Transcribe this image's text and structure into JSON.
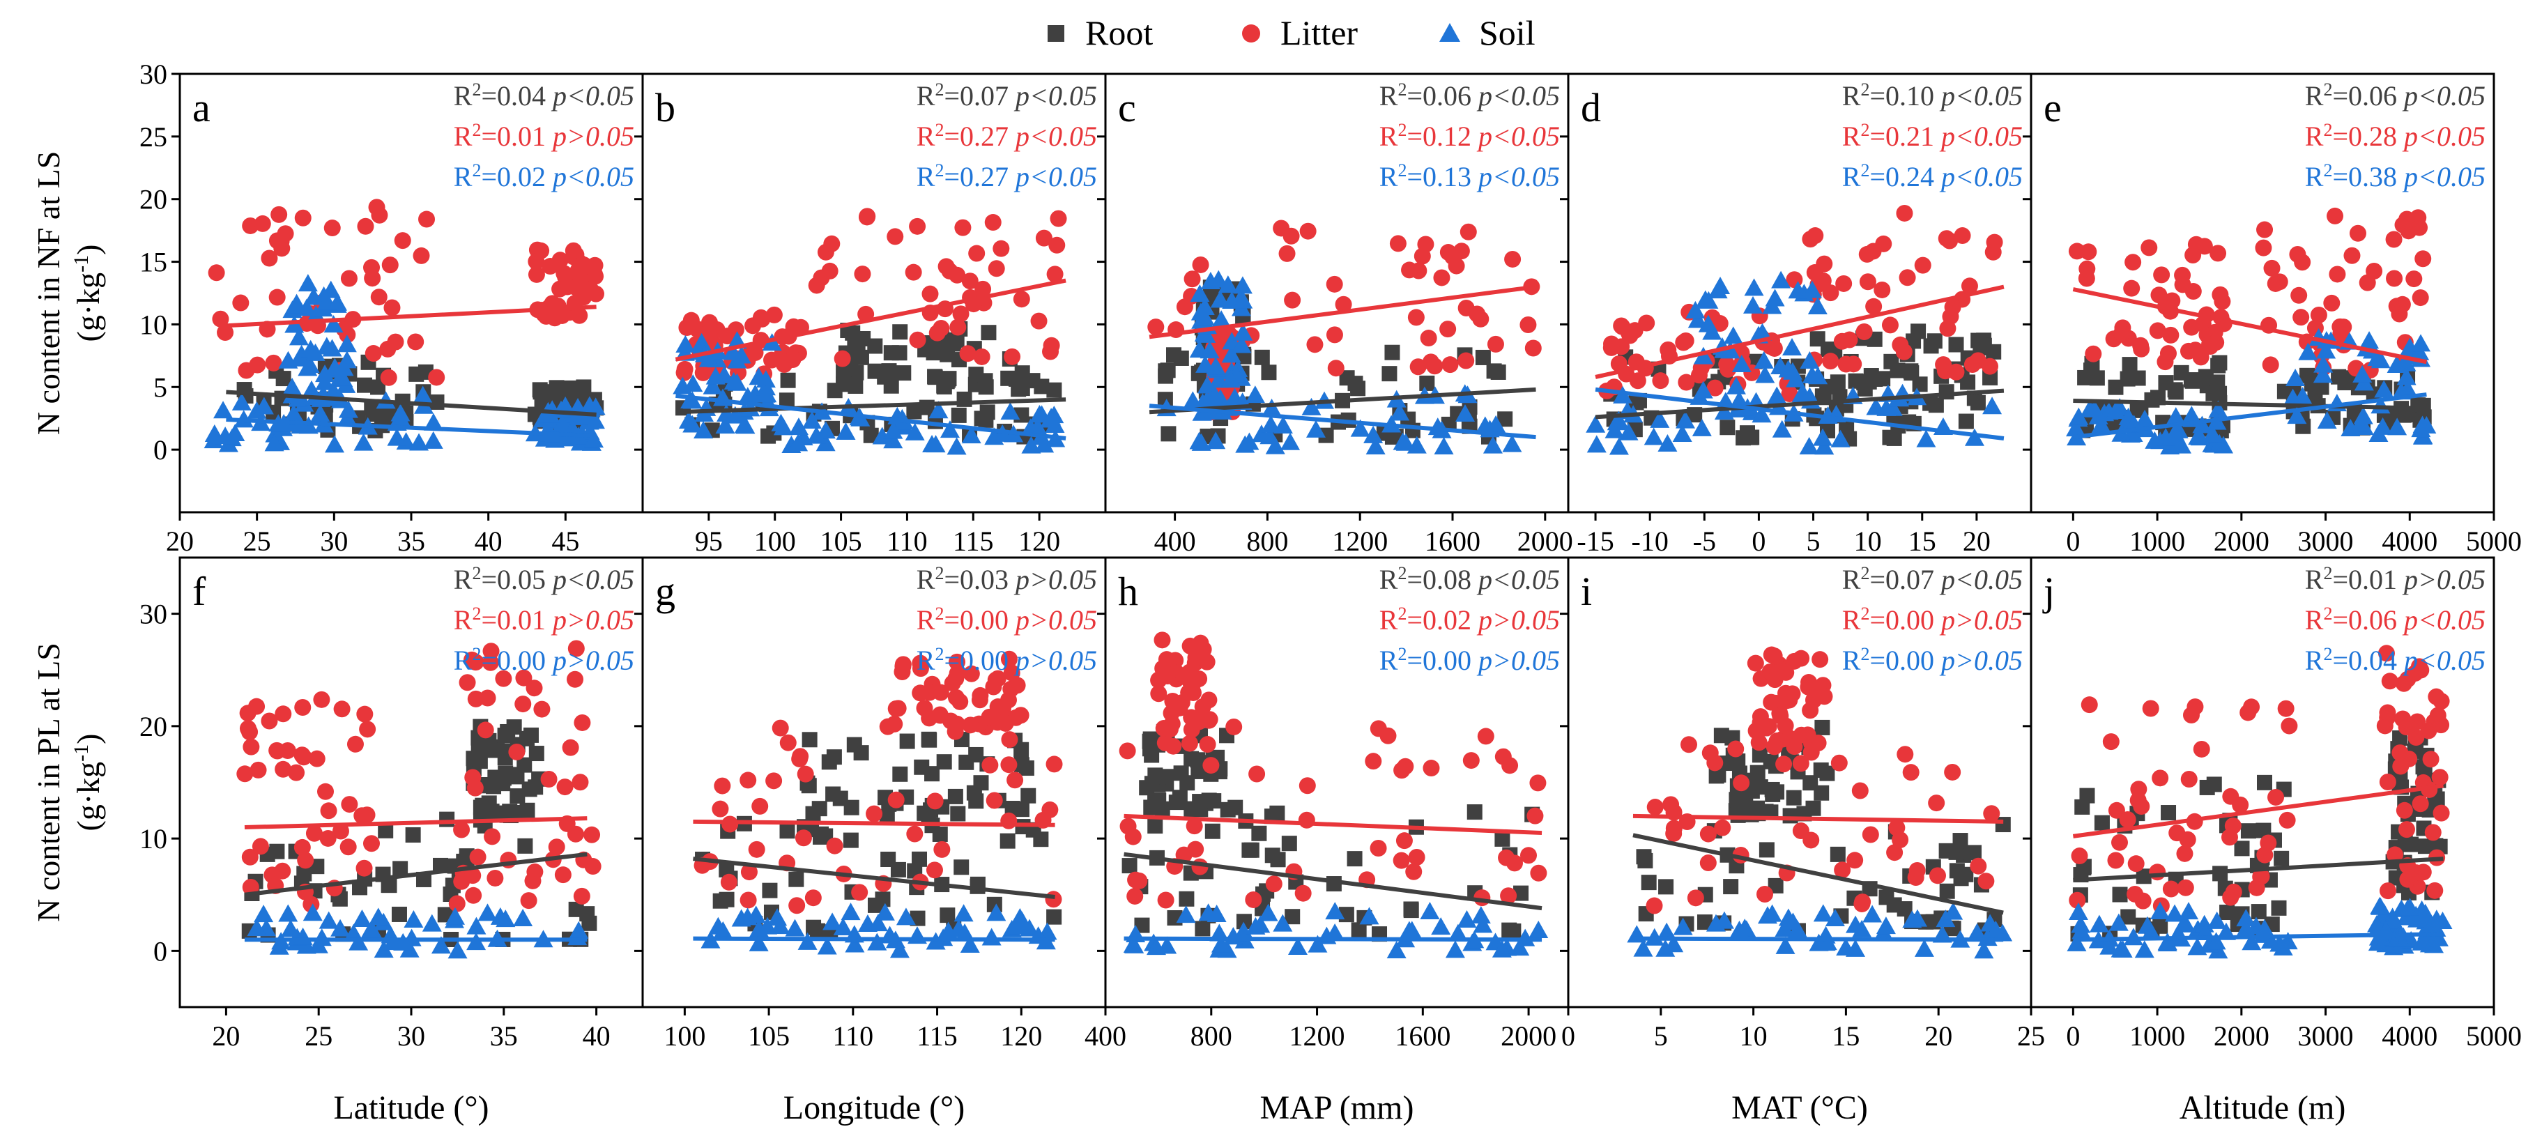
{
  "legend": {
    "position": "top-center",
    "items": [
      {
        "label": "Root",
        "marker": "square",
        "color": "#404040"
      },
      {
        "label": "Litter",
        "marker": "circle",
        "color": "#E8363A"
      },
      {
        "label": "Soil",
        "marker": "triangle",
        "color": "#1F75D8"
      }
    ]
  },
  "colors": {
    "root": "#404040",
    "litter": "#E8363A",
    "soil": "#1F75D8"
  },
  "rows": [
    {
      "ylabel": "N content in NF at LS",
      "yunit": "(g·kg",
      "yunit_exp": "-1",
      "yunit_close": ")",
      "ylim": [
        -5,
        30
      ],
      "yticks": [
        "0",
        "5",
        "10",
        "15",
        "20",
        "25",
        "30"
      ]
    },
    {
      "ylabel": "N content in PL at LS",
      "yunit": "(g·kg",
      "yunit_exp": "-1",
      "yunit_close": ")",
      "ylim": [
        -5,
        35
      ],
      "yticks": [
        "0",
        "10",
        "20",
        "30"
      ]
    }
  ],
  "columns": [
    {
      "xlabel": "Latitude (°)"
    },
    {
      "xlabel": "Longitude (°)"
    },
    {
      "xlabel": "MAP (mm)"
    },
    {
      "xlabel": "MAT (°C)"
    },
    {
      "xlabel": "Altitude (m)"
    }
  ],
  "chart_data": [
    {
      "type": "scatter",
      "panel": "a",
      "row": 0,
      "col": 0,
      "xlim": [
        20,
        50
      ],
      "xticks": [
        "20",
        "25",
        "30",
        "35",
        "40",
        "45"
      ],
      "stats": [
        {
          "series": "Root",
          "r2": "0.04",
          "p": "p<0.05"
        },
        {
          "series": "Litter",
          "r2": "0.01",
          "p": "p>0.05"
        },
        {
          "series": "Soil",
          "r2": "0.02",
          "p": "p<0.05"
        }
      ],
      "fits": {
        "root": [
          [
            23,
            4.6
          ],
          [
            47,
            2.8
          ]
        ],
        "litter": [
          [
            23,
            9.9
          ],
          [
            47,
            11.4
          ]
        ],
        "soil": [
          [
            23,
            2.4
          ],
          [
            47,
            1.1
          ]
        ]
      },
      "clusters": {
        "root": [
          [
            24,
            37,
            1.5,
            7
          ],
          [
            43,
            47,
            2,
            5
          ]
        ],
        "litter": [
          [
            22,
            37,
            5.5,
            19.5
          ],
          [
            43,
            47,
            10.5,
            16
          ]
        ],
        "soil": [
          [
            22,
            37,
            0.3,
            4.5
          ],
          [
            27,
            31,
            4,
            13.5
          ],
          [
            43,
            47,
            0.5,
            3.5
          ]
        ]
      }
    },
    {
      "type": "scatter",
      "panel": "b",
      "row": 0,
      "col": 0.0,
      "xlim": [
        90,
        125
      ],
      "xticks": [
        "95",
        "100",
        "105",
        "110",
        "115",
        "120"
      ],
      "stats": [
        {
          "series": "Root",
          "r2": "0.07",
          "p": "p<0.05"
        },
        {
          "series": "Litter",
          "r2": "0.27",
          "p": "p<0.05"
        },
        {
          "series": "Soil",
          "r2": "0.27",
          "p": "p<0.05"
        }
      ],
      "fits": {
        "root": [
          [
            92.5,
            3.0
          ],
          [
            122,
            4.0
          ]
        ],
        "litter": [
          [
            92.5,
            7.2
          ],
          [
            122,
            13.5
          ]
        ],
        "soil": [
          [
            92.5,
            4.3
          ],
          [
            122,
            0.9
          ]
        ]
      },
      "clusters": {
        "root": [
          [
            93,
            122,
            1,
            6.5
          ],
          [
            105,
            120,
            5,
            10
          ]
        ],
        "litter": [
          [
            93,
            102,
            6,
            11
          ],
          [
            103,
            122,
            7,
            19
          ]
        ],
        "soil": [
          [
            93,
            100,
            1.5,
            9
          ],
          [
            100,
            122,
            0.2,
            3.5
          ]
        ]
      }
    },
    {
      "type": "scatter",
      "panel": "c",
      "row": 0,
      "col": 0.0,
      "xlim": [
        100,
        2100
      ],
      "xticks": [
        "400",
        "800",
        "1200",
        "1600",
        "2000"
      ],
      "stats": [
        {
          "series": "Root",
          "r2": "0.06",
          "p": "p<0.05"
        },
        {
          "series": "Litter",
          "r2": "0.12",
          "p": "p<0.05"
        },
        {
          "series": "Soil",
          "r2": "0.13",
          "p": "p<0.05"
        }
      ],
      "fits": {
        "root": [
          [
            290,
            3.0
          ],
          [
            1960,
            4.8
          ]
        ],
        "litter": [
          [
            290,
            9.0
          ],
          [
            1960,
            13.0
          ]
        ],
        "soil": [
          [
            290,
            3.5
          ],
          [
            1960,
            1.0
          ]
        ]
      },
      "clusters": {
        "root": [
          [
            300,
            1950,
            1,
            8
          ],
          [
            500,
            700,
            5,
            13
          ]
        ],
        "litter": [
          [
            290,
            1950,
            6.5,
            19
          ],
          [
            550,
            650,
            3,
            10
          ]
        ],
        "soil": [
          [
            290,
            1950,
            0.2,
            4.5
          ],
          [
            500,
            700,
            3,
            14
          ]
        ]
      }
    },
    {
      "type": "scatter",
      "panel": "d",
      "row": 0,
      "col": 0.0,
      "xlim": [
        -17.5,
        25
      ],
      "xticks": [
        "-15",
        "-10",
        "-5",
        "0",
        "5",
        "10",
        "15",
        "20"
      ],
      "stats": [
        {
          "series": "Root",
          "r2": "0.10",
          "p": "p<0.05"
        },
        {
          "series": "Litter",
          "r2": "0.21",
          "p": "p<0.05"
        },
        {
          "series": "Soil",
          "r2": "0.24",
          "p": "p<0.05"
        }
      ],
      "fits": {
        "root": [
          [
            -15,
            2.6
          ],
          [
            22.5,
            4.7
          ]
        ],
        "litter": [
          [
            -15,
            5.8
          ],
          [
            22.5,
            13.0
          ]
        ],
        "soil": [
          [
            -15,
            4.8
          ],
          [
            22.5,
            0.9
          ]
        ]
      },
      "clusters": {
        "root": [
          [
            -14,
            22,
            0.8,
            7.5
          ],
          [
            5,
            22,
            2,
            10
          ]
        ],
        "litter": [
          [
            -14,
            3,
            4,
            11
          ],
          [
            3,
            22,
            6,
            19
          ]
        ],
        "soil": [
          [
            -15,
            22,
            0.2,
            4.5
          ],
          [
            -6,
            6,
            3,
            13.5
          ]
        ]
      }
    },
    {
      "type": "scatter",
      "panel": "e",
      "row": 0,
      "col": 0.0,
      "xlim": [
        -500,
        5000
      ],
      "xticks": [
        "0",
        "1000",
        "2000",
        "3000",
        "4000",
        "5000"
      ],
      "stats": [
        {
          "series": "Root",
          "r2": "0.06",
          "p": "p<0.05"
        },
        {
          "series": "Litter",
          "r2": "0.28",
          "p": "p<0.05"
        },
        {
          "series": "Soil",
          "r2": "0.38",
          "p": "p<0.05"
        }
      ],
      "fits": {
        "root": [
          [
            0,
            3.9
          ],
          [
            4200,
            3.3
          ]
        ],
        "litter": [
          [
            0,
            12.8
          ],
          [
            4200,
            7.0
          ]
        ],
        "soil": [
          [
            0,
            1.0
          ],
          [
            4200,
            4.4
          ]
        ]
      },
      "clusters": {
        "root": [
          [
            0,
            1800,
            1.5,
            7
          ],
          [
            2500,
            4200,
            1.5,
            6
          ]
        ],
        "litter": [
          [
            0,
            1800,
            7,
            17.5
          ],
          [
            2200,
            4200,
            5.5,
            19
          ]
        ],
        "soil": [
          [
            0,
            1800,
            0.2,
            3.5
          ],
          [
            2600,
            4200,
            1,
            9
          ]
        ]
      }
    },
    {
      "type": "scatter",
      "panel": "f",
      "row": 1,
      "col": 0,
      "xlim": [
        17.5,
        42.5
      ],
      "xticks": [
        "20",
        "25",
        "30",
        "35",
        "40"
      ],
      "stats": [
        {
          "series": "Root",
          "r2": "0.05",
          "p": "p<0.05"
        },
        {
          "series": "Litter",
          "r2": "0.01",
          "p": "p>0.05"
        },
        {
          "series": "Soil",
          "r2": "0.00",
          "p": "p>0.05"
        }
      ],
      "fits": {
        "root": [
          [
            21,
            5.0
          ],
          [
            39.5,
            8.6
          ]
        ],
        "litter": [
          [
            21,
            11.0
          ],
          [
            39.5,
            11.8
          ]
        ],
        "soil": [
          [
            21,
            1.0
          ],
          [
            39.5,
            1.0
          ]
        ]
      },
      "clusters": {
        "root": [
          [
            21,
            40,
            1,
            12
          ],
          [
            33,
            37,
            12,
            20
          ]
        ],
        "litter": [
          [
            21,
            28,
            4,
            23
          ],
          [
            32,
            40,
            4,
            27
          ]
        ],
        "soil": [
          [
            21,
            40,
            0,
            3.5
          ]
        ]
      }
    },
    {
      "type": "scatter",
      "panel": "g",
      "row": 1,
      "col": 0.0,
      "xlim": [
        97.5,
        125
      ],
      "xticks": [
        "100",
        "105",
        "110",
        "115",
        "120"
      ],
      "stats": [
        {
          "series": "Root",
          "r2": "0.03",
          "p": "p>0.05"
        },
        {
          "series": "Litter",
          "r2": "0.00",
          "p": "p>0.05"
        },
        {
          "series": "Soil",
          "r2": "0.00",
          "p": "p>0.05"
        }
      ],
      "fits": {
        "root": [
          [
            100.5,
            8.2
          ],
          [
            122,
            4.8
          ]
        ],
        "litter": [
          [
            100.5,
            11.5
          ],
          [
            122,
            11.2
          ]
        ],
        "soil": [
          [
            100.5,
            1.1
          ],
          [
            122,
            1.0
          ]
        ]
      },
      "clusters": {
        "root": [
          [
            101,
            122,
            1.5,
            12
          ],
          [
            106,
            121,
            12,
            19
          ]
        ],
        "litter": [
          [
            101,
            122,
            4,
            20
          ],
          [
            112,
            120,
            20,
            26
          ]
        ],
        "soil": [
          [
            101,
            122,
            0,
            3.5
          ]
        ]
      }
    },
    {
      "type": "scatter",
      "panel": "h",
      "row": 1,
      "col": 0.0,
      "xlim": [
        400,
        2150
      ],
      "xticks": [
        "400",
        "800",
        "1200",
        "1600",
        "2000"
      ],
      "stats": [
        {
          "series": "Root",
          "r2": "0.08",
          "p": "p<0.05"
        },
        {
          "series": "Litter",
          "r2": "0.02",
          "p": "p>0.05"
        },
        {
          "series": "Soil",
          "r2": "0.00",
          "p": "p>0.05"
        }
      ],
      "fits": {
        "root": [
          [
            470,
            8.6
          ],
          [
            2050,
            3.8
          ]
        ],
        "litter": [
          [
            470,
            12.0
          ],
          [
            2050,
            10.5
          ]
        ],
        "soil": [
          [
            470,
            1.1
          ],
          [
            2050,
            1.0
          ]
        ]
      },
      "clusters": {
        "root": [
          [
            470,
            2050,
            1.5,
            13
          ],
          [
            550,
            900,
            12,
            20
          ]
        ],
        "litter": [
          [
            470,
            2050,
            4.5,
            20
          ],
          [
            600,
            800,
            18,
            28
          ]
        ],
        "soil": [
          [
            470,
            2050,
            0,
            3.5
          ]
        ]
      }
    },
    {
      "type": "scatter",
      "panel": "i",
      "row": 1,
      "col": 0.0,
      "xlim": [
        0,
        25
      ],
      "xticks": [
        "0",
        "5",
        "10",
        "15",
        "20",
        "25"
      ],
      "stats": [
        {
          "series": "Root",
          "r2": "0.07",
          "p": "p<0.05"
        },
        {
          "series": "Litter",
          "r2": "0.00",
          "p": "p>0.05"
        },
        {
          "series": "Soil",
          "r2": "0.00",
          "p": "p>0.05"
        }
      ],
      "fits": {
        "root": [
          [
            3.5,
            10.3
          ],
          [
            23.5,
            3.4
          ]
        ],
        "litter": [
          [
            3.5,
            12.0
          ],
          [
            23.5,
            11.5
          ]
        ],
        "soil": [
          [
            3.5,
            1.1
          ],
          [
            23.5,
            1.0
          ]
        ]
      },
      "clusters": {
        "root": [
          [
            4,
            23.5,
            1.5,
            12
          ],
          [
            8,
            14,
            12,
            20
          ]
        ],
        "litter": [
          [
            4,
            23.5,
            4,
            20
          ],
          [
            10,
            14,
            18,
            26.5
          ]
        ],
        "soil": [
          [
            3.5,
            23.5,
            0,
            3.5
          ]
        ]
      }
    },
    {
      "type": "scatter",
      "panel": "j",
      "row": 1,
      "col": 0.0,
      "xlim": [
        -500,
        5000
      ],
      "xticks": [
        "0",
        "1000",
        "2000",
        "3000",
        "4000",
        "5000"
      ],
      "stats": [
        {
          "series": "Root",
          "r2": "0.01",
          "p": "p>0.05"
        },
        {
          "series": "Litter",
          "r2": "0.06",
          "p": "p<0.05"
        },
        {
          "series": "Soil",
          "r2": "0.04",
          "p": "p<0.05"
        }
      ],
      "fits": {
        "root": [
          [
            0,
            6.3
          ],
          [
            4400,
            8.2
          ]
        ],
        "litter": [
          [
            0,
            10.2
          ],
          [
            4400,
            14.7
          ]
        ],
        "soil": [
          [
            0,
            1.0
          ],
          [
            4400,
            1.5
          ]
        ]
      },
      "clusters": {
        "root": [
          [
            0,
            2600,
            1.5,
            16
          ],
          [
            3800,
            4400,
            5,
            19
          ]
        ],
        "litter": [
          [
            0,
            2600,
            4,
            22.5
          ],
          [
            3700,
            4400,
            5,
            26.5
          ]
        ],
        "soil": [
          [
            0,
            2600,
            0,
            3.5
          ],
          [
            3600,
            4400,
            0.3,
            4
          ]
        ]
      }
    }
  ]
}
